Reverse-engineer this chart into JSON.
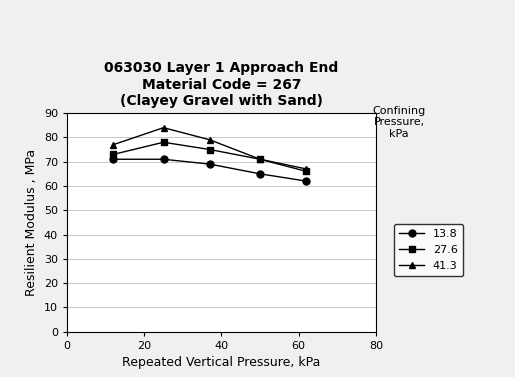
{
  "title_line1": "063030 Layer 1 Approach End",
  "title_line2": "Material Code = 267",
  "title_line3": "(Clayey Gravel with Sand)",
  "xlabel": "Repeated Vertical Pressure, kPa",
  "ylabel": "Resilient Modulus , MPa",
  "legend_header": "Confining\nPressure,\nkPa",
  "xlim": [
    0,
    80
  ],
  "ylim": [
    0,
    90
  ],
  "xticks": [
    0,
    20,
    40,
    60,
    80
  ],
  "yticks": [
    0,
    10,
    20,
    30,
    40,
    50,
    60,
    70,
    80,
    90
  ],
  "series": [
    {
      "label": "13.8",
      "x": [
        12,
        25,
        37,
        50,
        62
      ],
      "y": [
        71,
        71,
        69,
        65,
        62
      ],
      "marker": "o",
      "markersize": 5
    },
    {
      "label": "27.6",
      "x": [
        12,
        25,
        37,
        50,
        62
      ],
      "y": [
        73,
        78,
        75,
        71,
        66
      ],
      "marker": "s",
      "markersize": 5
    },
    {
      "label": "41.3",
      "x": [
        12,
        25,
        37,
        50,
        62
      ],
      "y": [
        77,
        84,
        79,
        71,
        67
      ],
      "marker": "^",
      "markersize": 5
    }
  ],
  "line_color": "#000000",
  "background_color": "#f0f0f0",
  "plot_bg_color": "#ffffff",
  "grid_color": "#c8c8c8",
  "title_fontsize": 10,
  "axis_label_fontsize": 9,
  "tick_fontsize": 8,
  "legend_fontsize": 8,
  "legend_title_fontsize": 8
}
